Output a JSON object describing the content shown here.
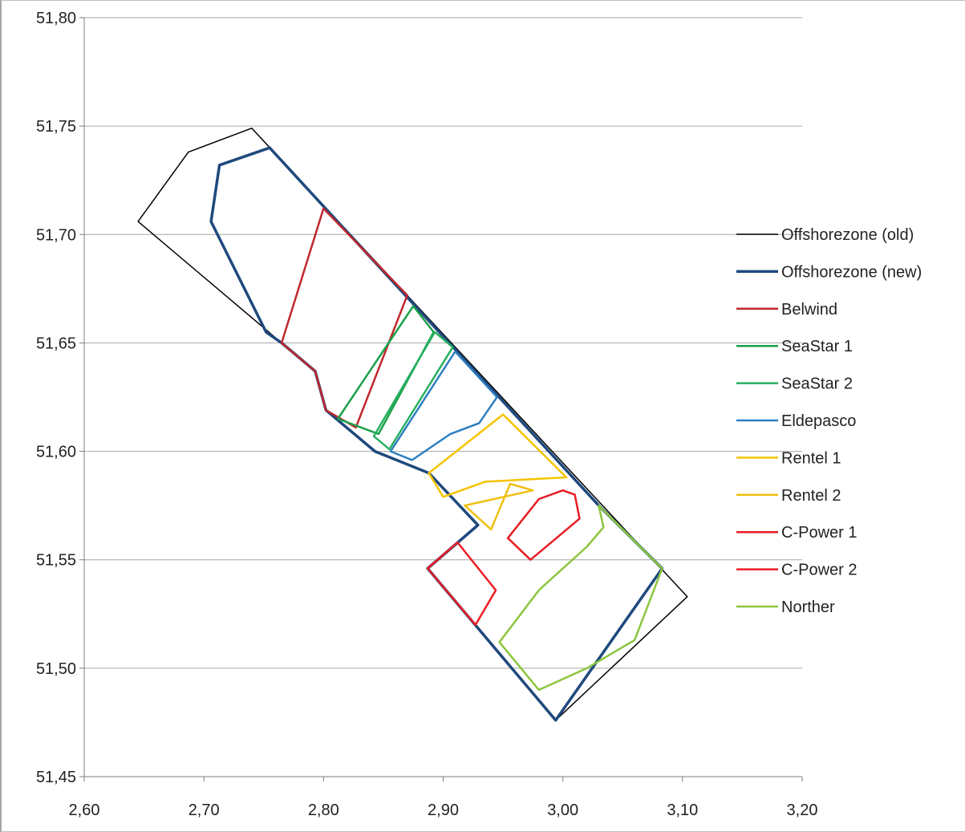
{
  "chart_data": {
    "type": "line",
    "title": "",
    "xlabel": "",
    "ylabel": "",
    "xlim": [
      2.6,
      3.2
    ],
    "ylim": [
      51.45,
      51.8
    ],
    "x_ticks": [
      2.6,
      2.7,
      2.8,
      2.9,
      3.0,
      3.1,
      3.2
    ],
    "y_ticks": [
      51.45,
      51.5,
      51.55,
      51.6,
      51.65,
      51.7,
      51.75,
      51.8
    ],
    "x_tick_labels": [
      "2,60",
      "2,70",
      "2,80",
      "2,90",
      "3,00",
      "3,10",
      "3,20"
    ],
    "y_tick_labels": [
      "51,45",
      "51,50",
      "51,55",
      "51,60",
      "51,65",
      "51,70",
      "51,75",
      "51,80"
    ],
    "grid": "horizontal",
    "legend_position": "right",
    "series": [
      {
        "name": "Offshorezone (old)",
        "color": "#000000",
        "points": [
          [
            2.645,
            51.706
          ],
          [
            2.687,
            51.738
          ],
          [
            2.74,
            51.749
          ],
          [
            3.104,
            51.533
          ],
          [
            2.994,
            51.476
          ],
          [
            2.887,
            51.546
          ],
          [
            2.929,
            51.566
          ],
          [
            2.888,
            51.59
          ],
          [
            2.843,
            51.6
          ],
          [
            2.802,
            51.619
          ],
          [
            2.793,
            51.637
          ],
          [
            2.765,
            51.65
          ],
          [
            2.645,
            51.706
          ]
        ]
      },
      {
        "name": "Offshorezone (new)",
        "color": "#1f497d",
        "points": [
          [
            2.755,
            51.74
          ],
          [
            2.713,
            51.732
          ],
          [
            2.706,
            51.706
          ],
          [
            2.752,
            51.655
          ],
          [
            2.765,
            51.65
          ],
          [
            2.793,
            51.637
          ],
          [
            2.802,
            51.619
          ],
          [
            2.843,
            51.6
          ],
          [
            2.888,
            51.59
          ],
          [
            2.929,
            51.566
          ],
          [
            2.887,
            51.546
          ],
          [
            2.994,
            51.476
          ],
          [
            3.083,
            51.546
          ],
          [
            3.03,
            51.575
          ],
          [
            2.755,
            51.74
          ]
        ]
      },
      {
        "name": "Belwind",
        "color": "#c0282d",
        "points": [
          [
            2.765,
            51.65
          ],
          [
            2.8,
            51.712
          ],
          [
            2.87,
            51.672
          ],
          [
            2.827,
            51.611
          ],
          [
            2.802,
            51.619
          ],
          [
            2.793,
            51.637
          ],
          [
            2.765,
            51.65
          ]
        ]
      },
      {
        "name": "SeaStar 1",
        "color": "#1aa04a",
        "points": [
          [
            2.812,
            51.615
          ],
          [
            2.875,
            51.667
          ],
          [
            2.892,
            51.655
          ],
          [
            2.846,
            51.608
          ],
          [
            2.812,
            51.615
          ]
        ]
      },
      {
        "name": "SeaStar 2",
        "color": "#27b060",
        "points": [
          [
            2.842,
            51.607
          ],
          [
            2.893,
            51.655
          ],
          [
            2.908,
            51.648
          ],
          [
            2.855,
            51.601
          ],
          [
            2.842,
            51.607
          ]
        ]
      },
      {
        "name": "Eldepasco",
        "color": "#2e7fc1",
        "points": [
          [
            2.856,
            51.6
          ],
          [
            2.91,
            51.646
          ],
          [
            2.945,
            51.625
          ],
          [
            2.93,
            51.613
          ],
          [
            2.906,
            51.608
          ],
          [
            2.874,
            51.596
          ],
          [
            2.856,
            51.6
          ]
        ]
      },
      {
        "name": "Rentel 1",
        "color": "#f5c400",
        "points": [
          [
            2.888,
            51.59
          ],
          [
            2.95,
            51.617
          ],
          [
            3.003,
            51.588
          ],
          [
            2.935,
            51.586
          ],
          [
            2.9,
            51.579
          ],
          [
            2.888,
            51.59
          ]
        ]
      },
      {
        "name": "Rentel 2",
        "color": "#f0c010",
        "points": [
          [
            2.918,
            51.575
          ],
          [
            2.94,
            51.564
          ],
          [
            2.956,
            51.585
          ],
          [
            2.975,
            51.582
          ],
          [
            2.918,
            51.575
          ]
        ]
      },
      {
        "name": "C-Power 1",
        "color": "#e81d24",
        "points": [
          [
            2.954,
            51.56
          ],
          [
            2.973,
            51.55
          ],
          [
            3.014,
            51.569
          ],
          [
            3.01,
            51.58
          ],
          [
            3.0,
            51.582
          ],
          [
            2.98,
            51.578
          ],
          [
            2.954,
            51.56
          ]
        ]
      },
      {
        "name": "C-Power 2",
        "color": "#ee1c25",
        "points": [
          [
            2.887,
            51.546
          ],
          [
            2.912,
            51.558
          ],
          [
            2.944,
            51.536
          ],
          [
            2.927,
            51.52
          ],
          [
            2.887,
            51.546
          ]
        ]
      },
      {
        "name": "Norther",
        "color": "#8cc63f",
        "points": [
          [
            2.947,
            51.512
          ],
          [
            2.98,
            51.536
          ],
          [
            3.02,
            51.556
          ],
          [
            3.034,
            51.565
          ],
          [
            3.03,
            51.575
          ],
          [
            3.083,
            51.546
          ],
          [
            3.06,
            51.513
          ],
          [
            3.02,
            51.5
          ],
          [
            2.98,
            51.49
          ],
          [
            2.947,
            51.512
          ]
        ]
      }
    ]
  }
}
